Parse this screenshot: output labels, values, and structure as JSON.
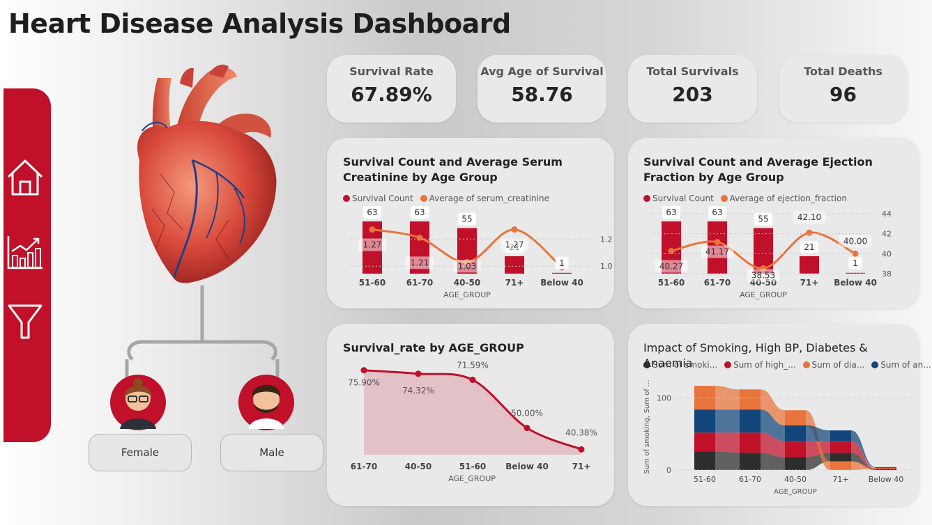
{
  "page": {
    "title": "Heart Disease Analysis Dashboard"
  },
  "colors": {
    "accent": "#c0102a",
    "orange": "#e8743b",
    "dark": "#2d2d2d",
    "navy": "#12467b",
    "card": "#e9e9e9"
  },
  "sidebar": {
    "items": [
      {
        "icon": "home-icon"
      },
      {
        "icon": "bar-chart-icon"
      },
      {
        "icon": "filter-icon"
      }
    ]
  },
  "kpis": [
    {
      "label": "Survival Rate",
      "value": "67.89%"
    },
    {
      "label": "Avg Age of Survival",
      "value": "58.76"
    },
    {
      "label": "Total Survivals",
      "value": "203"
    },
    {
      "label": "Total Deaths",
      "value": "96"
    }
  ],
  "gender": {
    "female": "Female",
    "male": "Male"
  },
  "chart_data": [
    {
      "type": "bar",
      "title": "Survival Count and Average Serum Creatinine by Age Group",
      "xlabel": "AGE_GROUP",
      "categories": [
        "51-60",
        "61-70",
        "40-50",
        "71+",
        "Below 40"
      ],
      "series": [
        {
          "name": "Survival Count",
          "type": "bar",
          "values": [
            63,
            63,
            55,
            21,
            1
          ],
          "labels": [
            "63",
            "63",
            "55",
            "21",
            "1"
          ]
        },
        {
          "name": "Average of serum_creatinine",
          "type": "line",
          "values": [
            1.27,
            1.21,
            1.03,
            1.27,
            0.99
          ],
          "labels": [
            "1.27",
            "1.21",
            "1.03",
            "1.27",
            ""
          ]
        }
      ],
      "y2_ticks": [
        "1.2",
        "1.0"
      ],
      "y2lim": [
        0.96,
        1.34
      ]
    },
    {
      "type": "bar",
      "title": "Survival Count and Average Ejection Fraction by Age Group",
      "xlabel": "AGE_GROUP",
      "categories": [
        "51-60",
        "61-70",
        "40-50",
        "71+",
        "Below 40"
      ],
      "series": [
        {
          "name": "Survival Count",
          "type": "bar",
          "values": [
            63,
            63,
            55,
            21,
            1
          ],
          "labels": [
            "63",
            "63",
            "55",
            "21",
            "1"
          ]
        },
        {
          "name": "Average of ejection_fraction",
          "type": "line",
          "values": [
            40.27,
            41.17,
            38.53,
            42.1,
            40.0
          ],
          "labels": [
            "40.27",
            "41.17",
            "38.53",
            "42.10",
            "40.00"
          ]
        }
      ],
      "y2_ticks": [
        "44",
        "42",
        "40",
        "38"
      ],
      "y2lim": [
        38,
        44
      ]
    },
    {
      "type": "area",
      "title": "Survival_rate by AGE_GROUP",
      "xlabel": "AGE_GROUP",
      "categories": [
        "61-70",
        "40-50",
        "51-60",
        "Below 40",
        "71+"
      ],
      "values": [
        75.9,
        74.32,
        71.59,
        50.0,
        40.38
      ],
      "labels": [
        "75.90%",
        "74.32%",
        "71.59%",
        "50.00%",
        "40.38%"
      ],
      "ylim": [
        38,
        78
      ]
    },
    {
      "type": "area",
      "subtype": "ribbon",
      "title": "Impact of Smoking, High BP, Diabetes & Anaemia",
      "xlabel": "AGE_GROUP",
      "ylabel": "Sum of smoking, Sum of ...",
      "legend": [
        "Sum of smoki...",
        "Sum of high_...",
        "Sum of dia...",
        "Sum of an..."
      ],
      "categories": [
        "51-60",
        "61-70",
        "40-50",
        "71+",
        "Below 40"
      ],
      "y_ticks": [
        "100",
        "0"
      ],
      "ylim": [
        0,
        150
      ],
      "series": [
        {
          "name": "Sum of smoking",
          "values": [
            26,
            24,
            18,
            12,
            1
          ]
        },
        {
          "name": "Sum of high_blood_pressure",
          "values": [
            26,
            28,
            22,
            16,
            1
          ]
        },
        {
          "name": "Sum of diabetes",
          "values": [
            33,
            28,
            21,
            12,
            1
          ]
        },
        {
          "name": "Sum of anaemia",
          "values": [
            32,
            32,
            22,
            15,
            1
          ]
        }
      ]
    }
  ]
}
